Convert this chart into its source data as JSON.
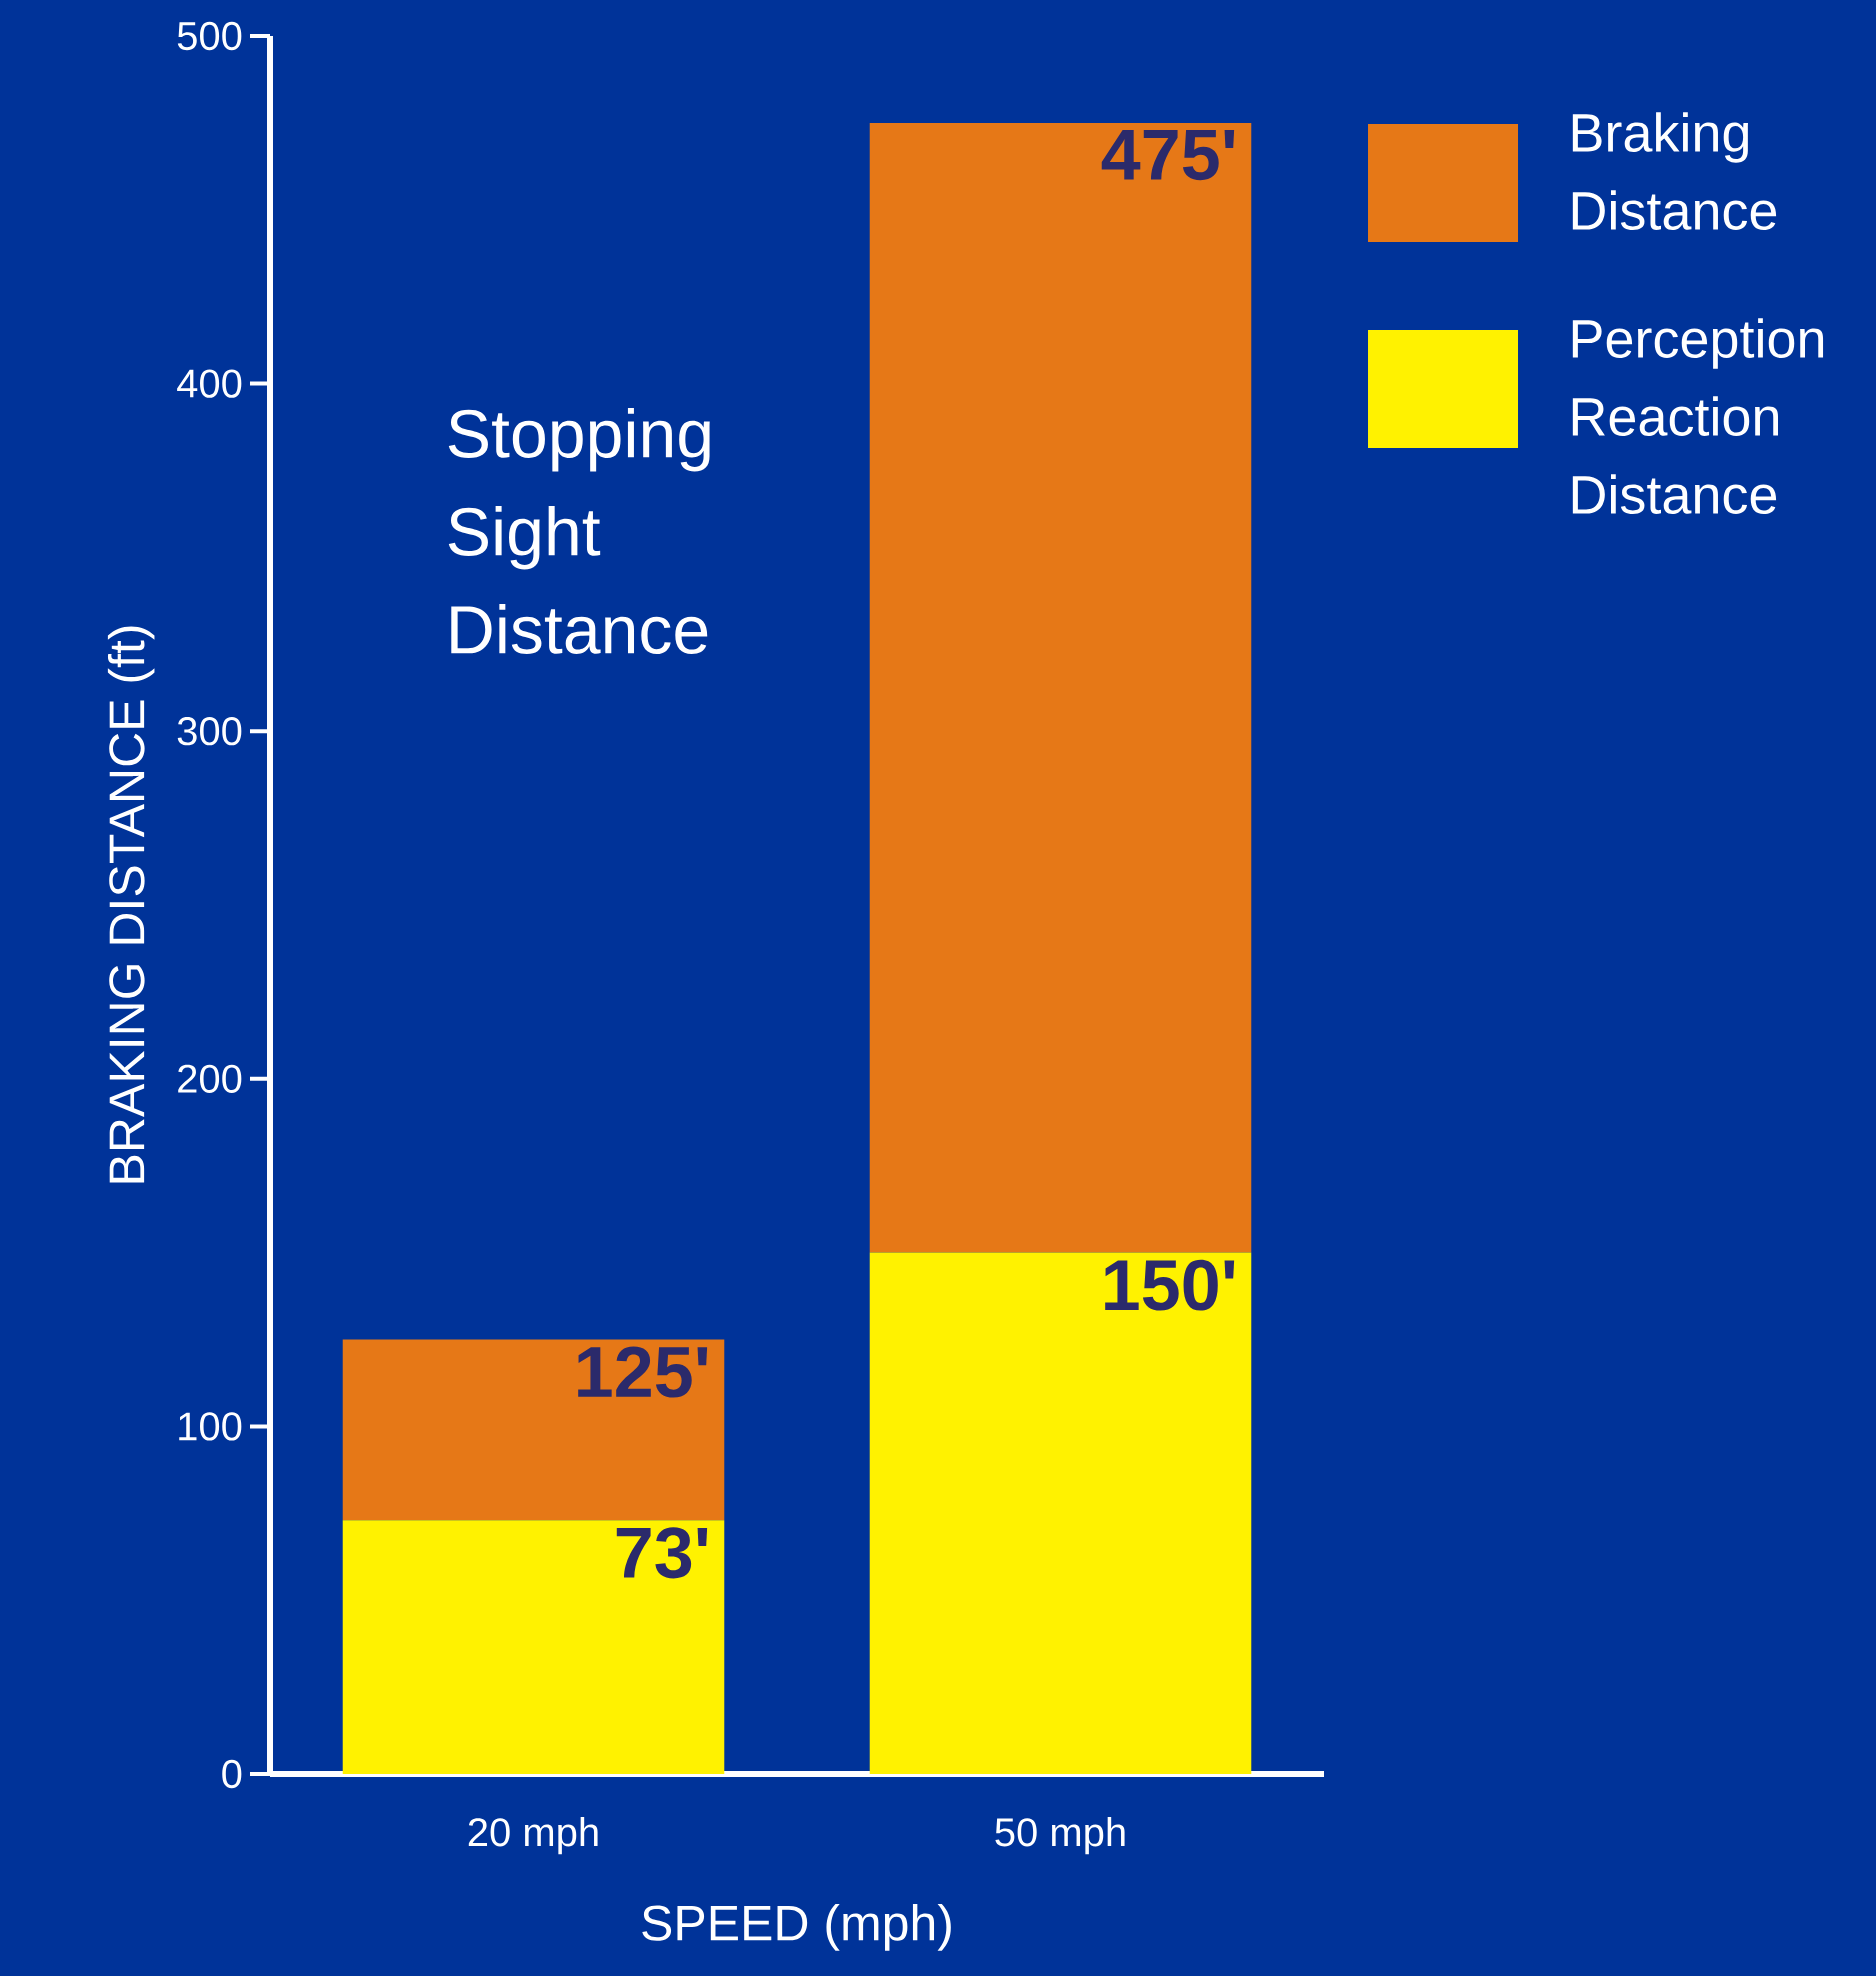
{
  "chart_data": {
    "type": "bar",
    "stacked": true,
    "xlabel": "SPEED (mph)",
    "ylabel": "BRAKING DISTANCE (ft)",
    "categories": [
      "20 mph",
      "50 mph"
    ],
    "series": [
      {
        "name": "Perception Reaction Distance",
        "color": "#fff200",
        "values": [
          73,
          150
        ],
        "value_labels": [
          "73'",
          "150'"
        ]
      },
      {
        "name": "Braking Distance",
        "color": "#e67817",
        "values": [
          52,
          325
        ]
      }
    ],
    "totals": [
      "125'",
      "475'"
    ],
    "ylim": [
      0,
      500
    ],
    "yticks": [
      0,
      100,
      200,
      300,
      400,
      500
    ],
    "annotations": [
      "Stopping Sight Distance"
    ],
    "legend": "top right"
  }
}
